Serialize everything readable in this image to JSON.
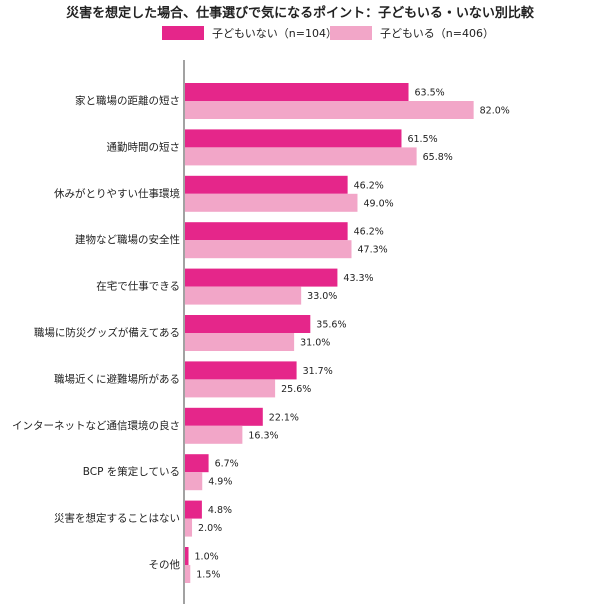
{
  "chart_data": {
    "type": "bar",
    "orientation": "horizontal",
    "title": "災害を想定した場合、仕事選びで気になるポイント：子どもいる・いない別比較",
    "categories": [
      "家と職場の距離の短さ",
      "通勤時間の短さ",
      "休みがとりやすい仕事環境",
      "建物など職場の安全性",
      "在宅で仕事できる",
      "職場に防災グッズが備えてある",
      "職場近くに避難場所がある",
      "インターネットなど通信環境の良さ",
      "BCP を策定している",
      "災害を想定することはない",
      "その他"
    ],
    "series": [
      {
        "name": "子どもいない（n=104）",
        "color": "#e5268a",
        "values": [
          63.5,
          61.5,
          46.2,
          46.2,
          43.3,
          35.6,
          31.7,
          22.1,
          6.7,
          4.8,
          1.0
        ],
        "labels": [
          "63.5%",
          "61.5%",
          "46.2%",
          "46.2%",
          "43.3%",
          "35.6%",
          "31.7%",
          "22.1%",
          "6.7%",
          "4.8%",
          "1.0%"
        ]
      },
      {
        "name": "子どもいる（n=406）",
        "color": "#f2a6c8",
        "values": [
          82.0,
          65.8,
          49.0,
          47.3,
          33.0,
          31.0,
          25.6,
          16.3,
          4.9,
          2.0,
          1.5
        ],
        "labels": [
          "82.0%",
          "65.8%",
          "49.0%",
          "47.3%",
          "33.0%",
          "31.0%",
          "25.6%",
          "16.3%",
          "4.9%",
          "2.0%",
          "1.5%"
        ]
      }
    ],
    "xlim": [
      0,
      100
    ],
    "grid": false,
    "legend_position": "top"
  }
}
